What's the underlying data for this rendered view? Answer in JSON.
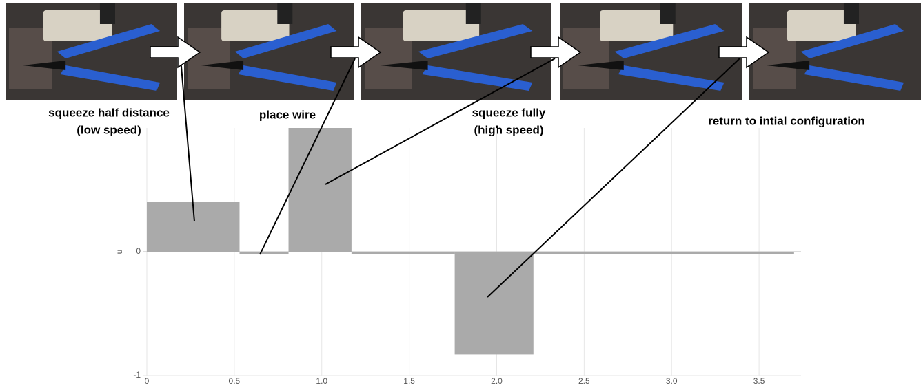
{
  "chart_data": {
    "type": "histogram",
    "annotations": [
      {
        "lines": [
          "squeeze half distance",
          "(low speed)"
        ]
      },
      {
        "lines": [
          "place wire"
        ]
      },
      {
        "lines": [
          "squeeze fully",
          "(high speed)"
        ]
      },
      {
        "lines": [
          "return to intial configuration"
        ]
      }
    ],
    "y_label": "u",
    "bins": [
      0,
      0.53,
      0.81,
      1.17,
      1.76,
      2.21,
      3.7
    ],
    "values": [
      0.4,
      -0.02,
      1.0,
      -0.01,
      -0.83,
      -0.02
    ],
    "color": "#aaaaaa",
    "xlim": [
      0,
      3.74
    ],
    "xticks": [
      0,
      0.5,
      {
        "value": 1,
        "label": "1.0"
      },
      1.5,
      {
        "value": 2,
        "label": "2.0"
      },
      2.5,
      {
        "value": 3,
        "label": "3.0"
      },
      3.5
    ],
    "ylim": [
      -1,
      1
    ],
    "yticks": [
      -1,
      0
    ],
    "grid": true
  }
}
